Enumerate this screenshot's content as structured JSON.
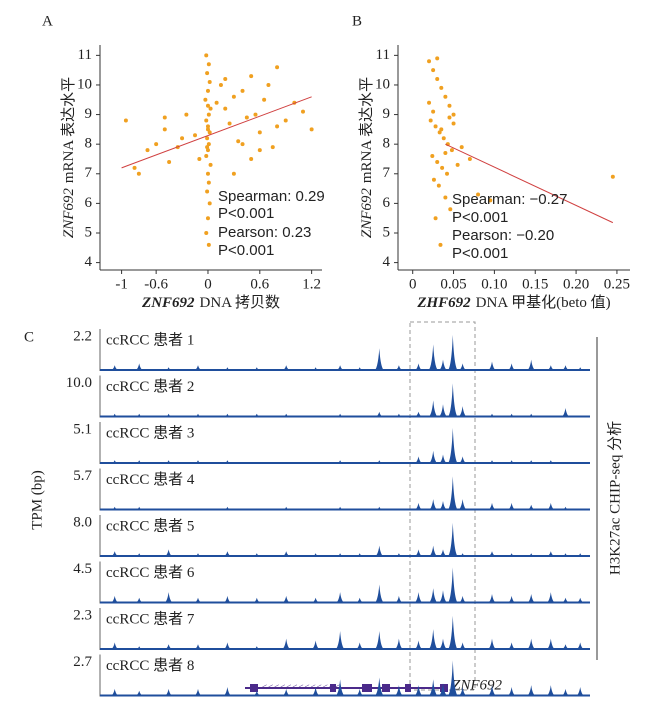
{
  "chart_data": [
    {
      "type": "scatter",
      "panel": "A",
      "color": "#f0a020",
      "fit_color": "#d04040",
      "xlabel_gene": "ZNF692",
      "xlabel": "DNA 拷贝数",
      "ylabel_gene": "ZNF692",
      "ylabel": "mRNA 表达水平",
      "xlim": [
        -1.25,
        1.32
      ],
      "ylim": [
        3.75,
        11.35
      ],
      "xticks": [
        -1,
        -0.6,
        0,
        0.6,
        1.2
      ],
      "yticks": [
        4,
        5,
        6,
        7,
        8,
        9,
        10,
        11
      ],
      "annotations": [
        "Spearman: 0.29",
        "P<0.001",
        "Pearson: 0.23",
        "P<0.001"
      ],
      "fit": {
        "x": [
          -1,
          1.2
        ],
        "y": [
          7.2,
          9.6
        ]
      },
      "x": [
        -0.02,
        0.01,
        -0.01,
        0.02,
        0.0,
        -0.03,
        0.03,
        0.01,
        -0.02,
        0.0,
        0.02,
        -0.01,
        0.01,
        0.0,
        -0.02,
        0.03,
        0.0,
        0.01,
        -0.01,
        0.02,
        0.0,
        -0.02,
        0.01,
        0.0,
        0.0,
        -0.01,
        -0.95,
        -0.85,
        -0.7,
        -0.6,
        -0.5,
        -0.45,
        -0.35,
        -0.3,
        -0.25,
        -0.15,
        -0.1,
        0.1,
        0.15,
        0.2,
        0.25,
        0.3,
        0.35,
        0.4,
        0.45,
        0.5,
        0.55,
        0.6,
        0.65,
        0.7,
        0.75,
        0.8,
        0.9,
        1.0,
        1.1,
        1.2,
        0.3,
        0.5,
        0.2,
        -0.5,
        0.4,
        0.8,
        0.6,
        -0.8
      ],
      "y": [
        11.0,
        10.7,
        10.4,
        10.1,
        9.8,
        9.5,
        9.2,
        9.0,
        8.8,
        8.6,
        8.4,
        8.2,
        8.0,
        7.8,
        7.6,
        7.3,
        7.0,
        6.7,
        6.4,
        6.0,
        5.5,
        5.0,
        4.6,
        8.5,
        9.3,
        7.9,
        8.8,
        7.2,
        7.8,
        8.0,
        8.5,
        7.4,
        7.9,
        8.2,
        9.0,
        8.3,
        7.5,
        9.4,
        10.0,
        9.2,
        8.7,
        9.6,
        8.1,
        9.8,
        8.9,
        10.3,
        9.0,
        8.4,
        9.5,
        10.0,
        7.9,
        8.6,
        8.8,
        9.4,
        9.1,
        8.5,
        7.0,
        7.5,
        10.2,
        8.9,
        8.0,
        10.6,
        7.8,
        7.0
      ]
    },
    {
      "type": "scatter",
      "panel": "B",
      "color": "#f0a020",
      "fit_color": "#d04040",
      "xlabel_gene": "ZHF692",
      "xlabel": "DNA 甲基化(beto 值)",
      "ylabel_gene": "ZNF692",
      "ylabel": "mRNA 表达水平",
      "xlim": [
        -0.018,
        0.266
      ],
      "ylim": [
        3.75,
        11.35
      ],
      "xticks": [
        0,
        0.05,
        {
          "value": 0.1,
          "label": "0.10"
        },
        {
          "value": 0.15,
          "label": "0.15"
        },
        {
          "value": 0.2,
          "label": "0.20"
        },
        0.25
      ],
      "yticks": [
        4,
        5,
        6,
        7,
        8,
        9,
        10,
        11
      ],
      "annotations": [
        "Spearman: −0.27",
        "P<0.001",
        "Pearson: −0.20",
        "P<0.001"
      ],
      "fit": {
        "x": [
          0.04,
          0.245
        ],
        "y": [
          8.0,
          5.35
        ]
      },
      "x": [
        0.02,
        0.025,
        0.03,
        0.035,
        0.04,
        0.045,
        0.05,
        0.022,
        0.028,
        0.033,
        0.038,
        0.043,
        0.048,
        0.024,
        0.03,
        0.036,
        0.042,
        0.026,
        0.032,
        0.04,
        0.046,
        0.02,
        0.03,
        0.035,
        0.05,
        0.055,
        0.06,
        0.07,
        0.08,
        0.095,
        0.245,
        0.028,
        0.034,
        0.04,
        0.025,
        0.045
      ],
      "y": [
        10.8,
        10.5,
        10.2,
        9.9,
        9.6,
        9.3,
        9.0,
        8.8,
        8.6,
        8.4,
        8.2,
        8.0,
        7.8,
        7.6,
        7.4,
        7.2,
        7.0,
        6.8,
        6.6,
        6.2,
        5.8,
        9.4,
        10.9,
        8.5,
        8.7,
        7.3,
        7.9,
        7.5,
        6.3,
        6.1,
        6.9,
        5.5,
        4.6,
        7.7,
        9.1,
        8.9
      ]
    },
    {
      "type": "track",
      "panel": "C",
      "color": "#1f4e9c",
      "ylabel": "TPM (bp)",
      "right_label": "H3K27ac CHIP-seq 分析",
      "gene": "ZNF692",
      "positions": [
        3,
        8,
        14,
        20,
        26,
        32,
        38,
        44,
        49,
        53,
        57,
        61,
        65,
        68,
        70,
        72,
        74,
        80,
        84,
        88,
        92,
        95,
        98
      ],
      "series": [
        {
          "name": "ccRCC 患者 1",
          "scale": 2.2,
          "values": [
            0.15,
            0.2,
            0.1,
            0.15,
            0.1,
            0.1,
            0.15,
            0.1,
            0.15,
            0.1,
            0.6,
            0.15,
            0.2,
            0.7,
            0.3,
            0.95,
            0.2,
            0.25,
            0.2,
            0.3,
            0.15,
            0.15,
            0.1
          ]
        },
        {
          "name": "ccRCC 患者 2",
          "scale": {
            "value": 10,
            "label": "10.0"
          },
          "values": [
            0.1,
            0.1,
            0.1,
            0.1,
            0.1,
            0.1,
            0.1,
            0.05,
            0.1,
            0.05,
            0.15,
            0.1,
            0.15,
            0.45,
            0.35,
            0.9,
            0.3,
            0.1,
            0.1,
            0.1,
            0.05,
            0.25,
            0.05
          ]
        },
        {
          "name": "ccRCC 患者 3",
          "scale": 5.1,
          "values": [
            0.1,
            0.1,
            0.1,
            0.1,
            0.1,
            0.05,
            0.05,
            0.05,
            0.1,
            0.05,
            0.1,
            0.05,
            0.2,
            0.35,
            0.25,
            0.95,
            0.2,
            0.1,
            0.1,
            0.1,
            0.1,
            0.05,
            0.05
          ]
        },
        {
          "name": "ccRCC 患者 4",
          "scale": 5.7,
          "values": [
            0.1,
            0.1,
            0.05,
            0.05,
            0.1,
            0.05,
            0.1,
            0.05,
            0.1,
            0.05,
            0.1,
            0.05,
            0.2,
            0.3,
            0.25,
            0.9,
            0.3,
            0.2,
            0.2,
            0.15,
            0.2,
            0.1,
            0.05
          ]
        },
        {
          "name": "ccRCC 患者 5",
          "scale": {
            "value": 8,
            "label": "8.0"
          },
          "values": [
            0.15,
            0.1,
            0.2,
            0.1,
            0.15,
            0.1,
            0.15,
            0.1,
            0.1,
            0.1,
            0.3,
            0.1,
            0.2,
            0.3,
            0.2,
            0.9,
            0.1,
            0.15,
            0.1,
            0.1,
            0.15,
            0.1,
            0.1
          ]
        },
        {
          "name": "ccRCC 患者 6",
          "scale": 4.5,
          "values": [
            0.2,
            0.15,
            0.3,
            0.15,
            0.2,
            0.15,
            0.2,
            0.15,
            0.3,
            0.15,
            0.5,
            0.2,
            0.3,
            0.4,
            0.35,
            0.95,
            0.2,
            0.25,
            0.2,
            0.25,
            0.3,
            0.15,
            0.15
          ]
        },
        {
          "name": "ccRCC 患者 7",
          "scale": 2.3,
          "values": [
            0.2,
            0.1,
            0.15,
            0.15,
            0.2,
            0.1,
            0.3,
            0.25,
            0.5,
            0.2,
            0.5,
            0.3,
            0.25,
            0.55,
            0.3,
            0.9,
            0.2,
            0.3,
            0.2,
            0.3,
            0.3,
            0.15,
            0.2
          ]
        },
        {
          "name": "ccRCC 患者 8",
          "scale": 2.7,
          "values": [
            0.2,
            0.15,
            0.2,
            0.2,
            0.25,
            0.15,
            0.2,
            0.25,
            0.45,
            0.2,
            0.5,
            0.3,
            0.3,
            0.45,
            0.35,
            0.95,
            0.25,
            0.3,
            0.25,
            0.3,
            0.3,
            0.2,
            0.25
          ]
        }
      ]
    }
  ]
}
